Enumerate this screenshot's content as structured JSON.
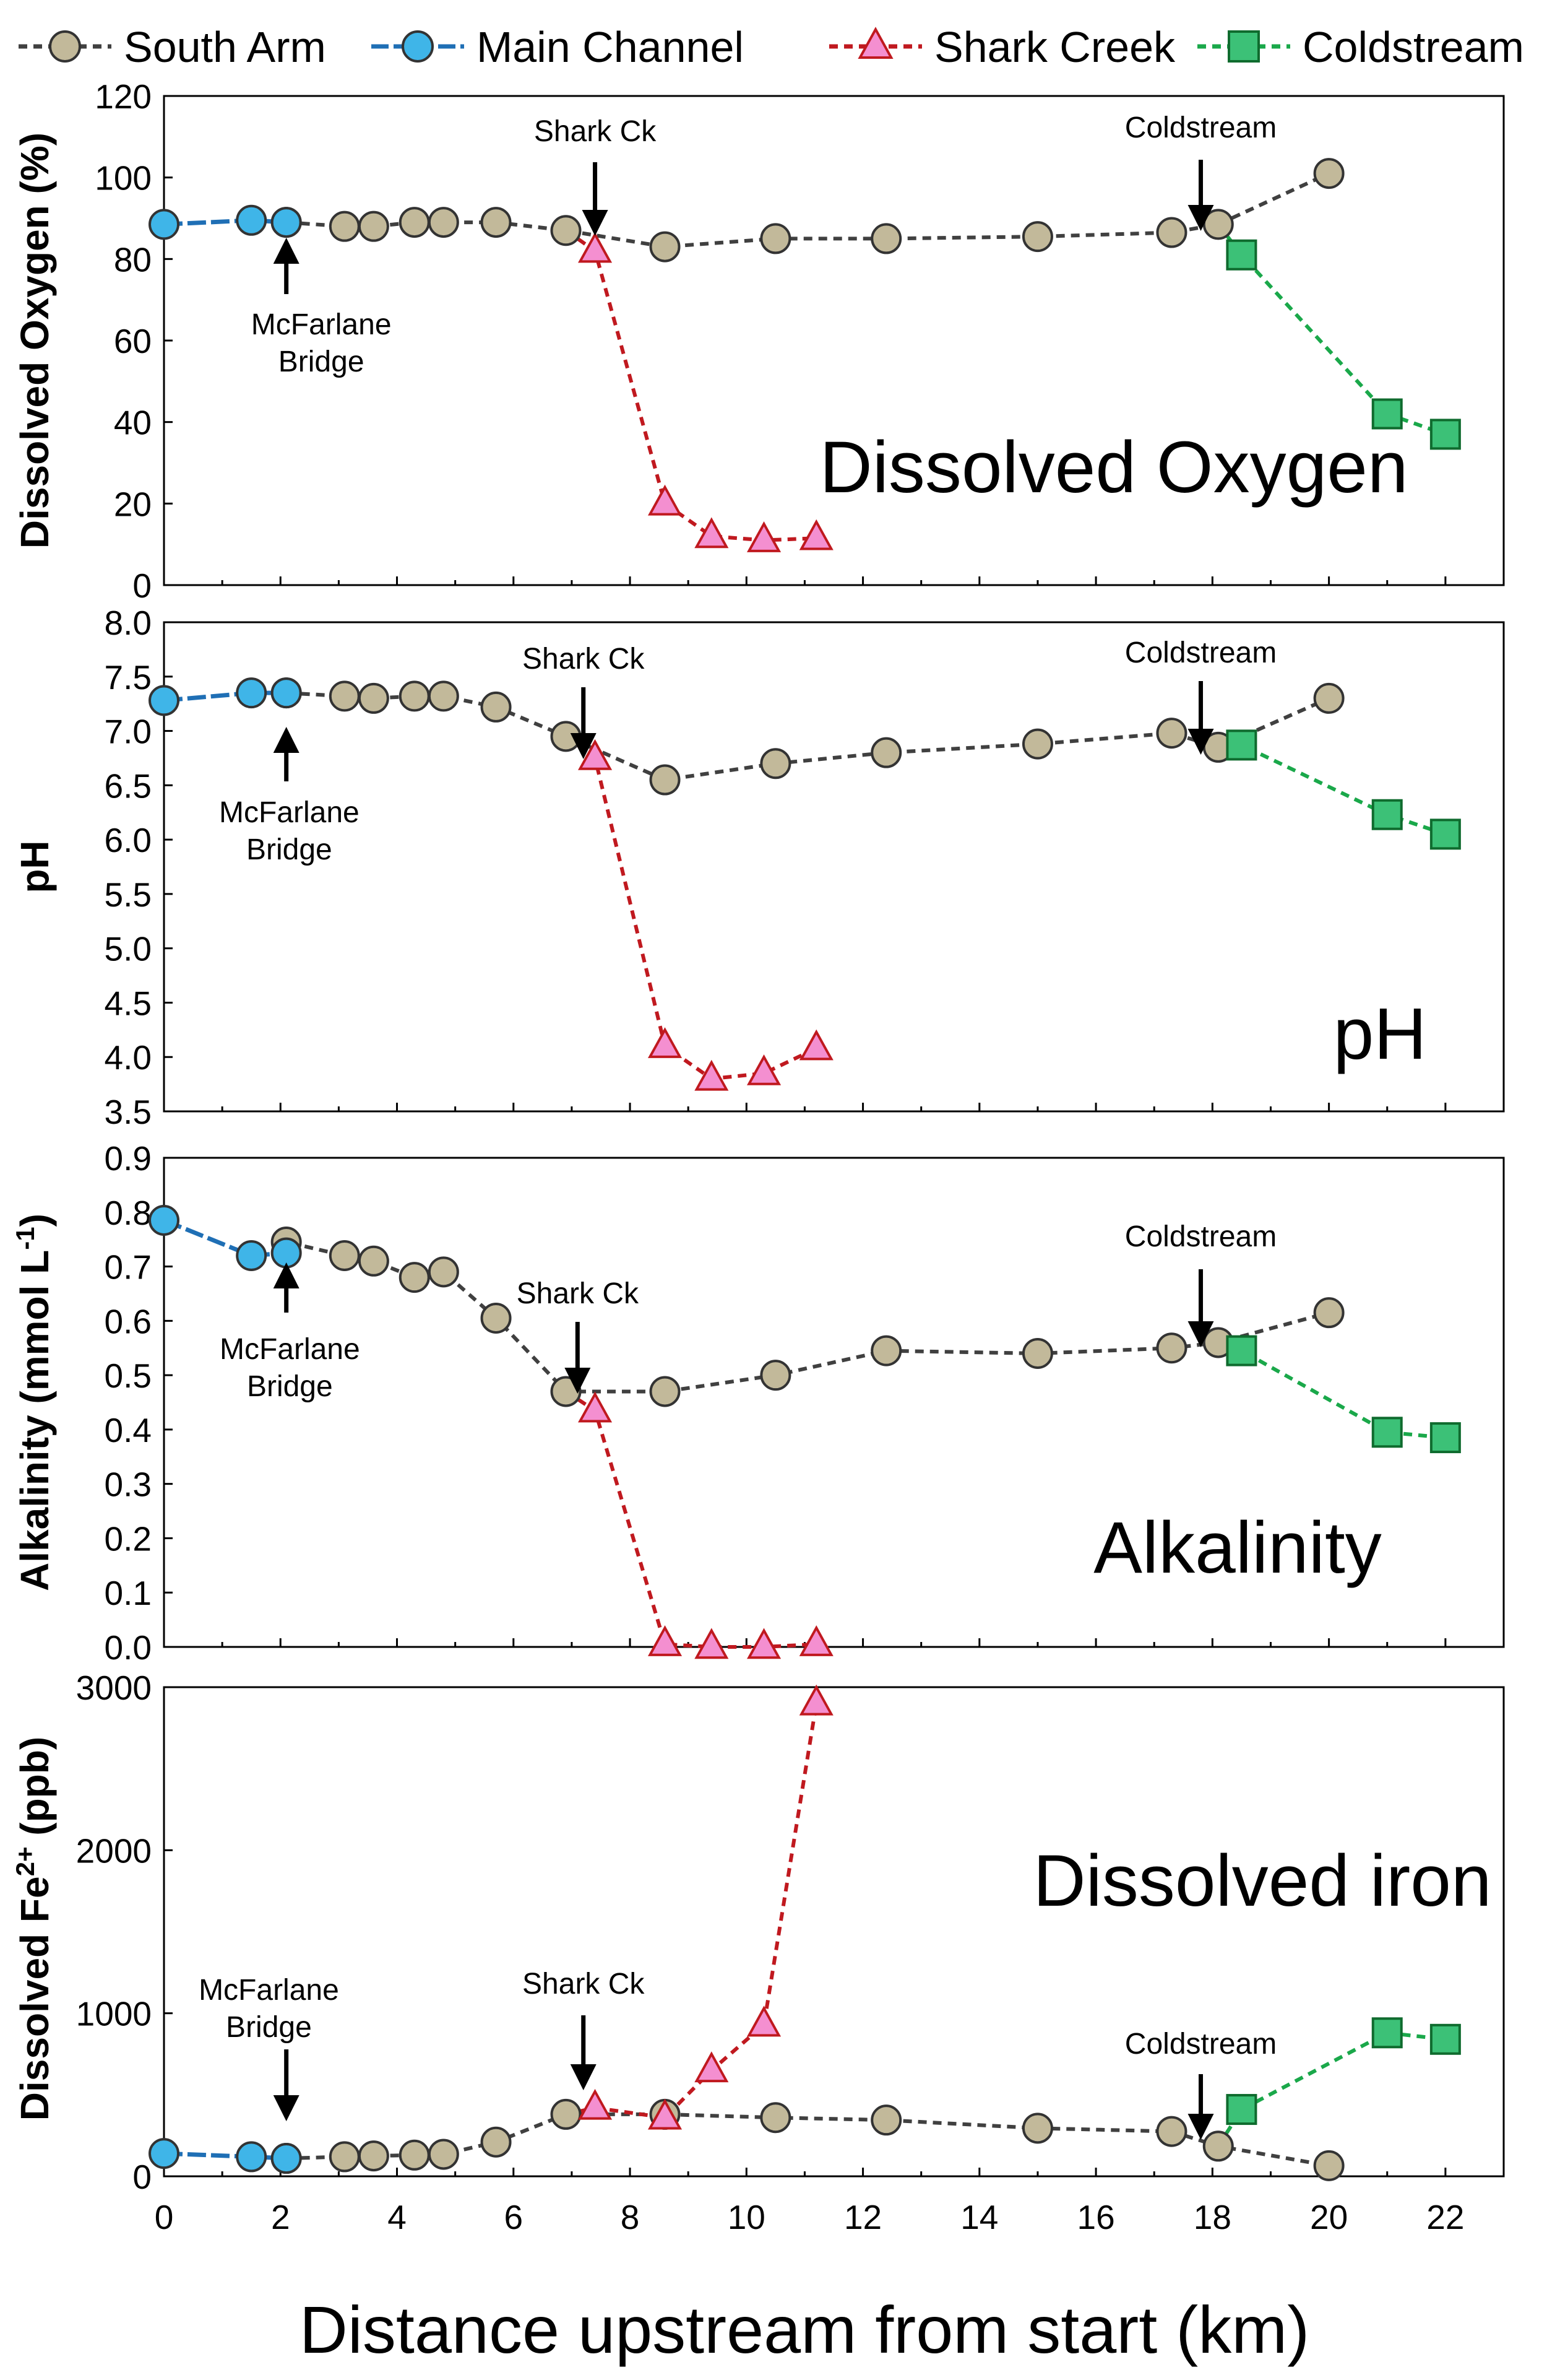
{
  "colors": {
    "south_arm": "#c2b99a",
    "south_arm_line": "#404040",
    "main_channel": "#3fb5e8",
    "main_channel_line": "#1f6fb5",
    "shark_creek": "#f48fd0",
    "shark_creek_line": "#c0191f",
    "coldstream": "#3cc177",
    "coldstream_line": "#1aa84a"
  },
  "legend": [
    {
      "key": "south_arm",
      "label": "South Arm",
      "marker": "circle"
    },
    {
      "key": "main_channel",
      "label": "Main Channel",
      "marker": "circle"
    },
    {
      "key": "shark_creek",
      "label": "Shark Creek",
      "marker": "triangle"
    },
    {
      "key": "coldstream",
      "label": "Coldstream",
      "marker": "square"
    }
  ],
  "x_axis": {
    "label": "Distance upstream from start (km)",
    "range": [
      0,
      23
    ],
    "ticks": [
      0,
      2,
      4,
      6,
      8,
      10,
      12,
      14,
      16,
      18,
      20,
      22
    ]
  },
  "chart_data": [
    {
      "type": "line",
      "id": "do",
      "title": "Dissolved Oxygen",
      "ylabel": "Dissolved Oxygen (%)",
      "ylim": [
        0,
        120
      ],
      "yticks": [
        "0",
        "20",
        "40",
        "60",
        "80",
        "100",
        "120"
      ],
      "series": [
        {
          "key": "south_arm",
          "name": "South Arm",
          "x": [
            2.1,
            3.1,
            3.6,
            4.3,
            4.8,
            5.7,
            6.9,
            8.6,
            10.5,
            12.4,
            15,
            17.3,
            18.1,
            20
          ],
          "y": [
            89,
            88,
            88,
            89,
            89,
            89,
            87,
            83,
            85,
            85,
            85.5,
            86.5,
            88.5,
            101
          ]
        },
        {
          "key": "main_channel",
          "name": "Main Channel",
          "x": [
            0,
            1.5,
            2.1
          ],
          "y": [
            88.5,
            89.5,
            89
          ]
        },
        {
          "key": "shark_creek",
          "name": "Shark Creek",
          "x": [
            7.4,
            8.6,
            9.4,
            10.3,
            11.2
          ],
          "y": [
            82,
            20,
            12,
            11,
            11.5
          ]
        },
        {
          "key": "coldstream",
          "name": "Coldstream",
          "x": [
            18.5,
            21,
            22
          ],
          "y": [
            81,
            42,
            37
          ]
        }
      ],
      "annotations": [
        {
          "text": "Shark Ck",
          "x": 7.4
        },
        {
          "text": "Coldstream",
          "x": 17.8
        },
        {
          "text": "McFarlane",
          "line2": "Bridge",
          "x": 2.1
        }
      ]
    },
    {
      "type": "line",
      "id": "ph",
      "title": "pH",
      "ylabel": "pH",
      "ylim": [
        3.5,
        8.0
      ],
      "yticks": [
        "3.5",
        "4.0",
        "4.5",
        "5.0",
        "5.5",
        "6.0",
        "6.5",
        "7.0",
        "7.5",
        "8.0"
      ],
      "series": [
        {
          "key": "south_arm",
          "name": "South Arm",
          "x": [
            2.1,
            3.1,
            3.6,
            4.3,
            4.8,
            5.7,
            6.9,
            8.6,
            10.5,
            12.4,
            15,
            17.3,
            18.1,
            20
          ],
          "y": [
            7.35,
            7.32,
            7.3,
            7.32,
            7.32,
            7.22,
            6.95,
            6.55,
            6.7,
            6.8,
            6.88,
            6.98,
            6.85,
            7.3
          ]
        },
        {
          "key": "main_channel",
          "name": "Main Channel",
          "x": [
            0,
            1.5,
            2.1
          ],
          "y": [
            7.28,
            7.35,
            7.35
          ]
        },
        {
          "key": "shark_creek",
          "name": "Shark Creek",
          "x": [
            7.4,
            8.6,
            9.4,
            10.3,
            11.2
          ],
          "y": [
            6.75,
            4.1,
            3.8,
            3.85,
            4.08
          ]
        },
        {
          "key": "coldstream",
          "name": "Coldstream",
          "x": [
            18.5,
            21,
            22
          ],
          "y": [
            6.87,
            6.23,
            6.05
          ]
        }
      ],
      "annotations": [
        {
          "text": "Shark Ck",
          "x": 7.2
        },
        {
          "text": "Coldstream",
          "x": 17.8
        },
        {
          "text": "McFarlane",
          "line2": "Bridge",
          "x": 2.1
        }
      ]
    },
    {
      "type": "line",
      "id": "alk",
      "title": "Alkalinity",
      "ylabel": "Alkalinity (mmol L-1)",
      "ylim": [
        0,
        0.9
      ],
      "yticks": [
        "0.0",
        "0.1",
        "0.2",
        "0.3",
        "0.4",
        "0.5",
        "0.6",
        "0.7",
        "0.8",
        "0.9"
      ],
      "series": [
        {
          "key": "south_arm",
          "name": "South Arm",
          "x": [
            2.1,
            3.1,
            3.6,
            4.3,
            4.8,
            5.7,
            6.9,
            8.6,
            10.5,
            12.4,
            15,
            17.3,
            18.1,
            20
          ],
          "y": [
            0.745,
            0.72,
            0.71,
            0.68,
            0.69,
            0.605,
            0.47,
            0.47,
            0.5,
            0.545,
            0.54,
            0.55,
            0.56,
            0.615
          ]
        },
        {
          "key": "main_channel",
          "name": "Main Channel",
          "x": [
            0,
            1.5,
            2.1
          ],
          "y": [
            0.785,
            0.72,
            0.725
          ]
        },
        {
          "key": "shark_creek",
          "name": "Shark Creek",
          "x": [
            7.4,
            8.6,
            9.4,
            10.3,
            11.2
          ],
          "y": [
            0.435,
            0.005,
            0.0,
            0.0,
            0.005
          ]
        },
        {
          "key": "coldstream",
          "name": "Coldstream",
          "x": [
            18.5,
            21,
            22
          ],
          "y": [
            0.545,
            0.395,
            0.385
          ]
        }
      ],
      "annotations": [
        {
          "text": "Shark Ck",
          "x": 7.1
        },
        {
          "text": "Coldstream",
          "x": 17.8
        },
        {
          "text": "McFarlane",
          "line2": "Bridge",
          "x": 2.1
        }
      ]
    },
    {
      "type": "line",
      "id": "fe",
      "title": "Dissolved iron",
      "ylabel": "Dissolved Fe2+ (ppb)",
      "ylim": [
        0,
        3000
      ],
      "yticks": [
        "0",
        "1000",
        "2000",
        "3000"
      ],
      "series": [
        {
          "key": "south_arm",
          "name": "South Arm",
          "x": [
            2.1,
            3.1,
            3.6,
            4.3,
            4.8,
            5.7,
            6.9,
            8.6,
            10.5,
            12.4,
            15,
            17.3,
            18.1,
            20
          ],
          "y": [
            110,
            120,
            125,
            130,
            135,
            210,
            380,
            380,
            360,
            345,
            295,
            275,
            185,
            65
          ]
        },
        {
          "key": "main_channel",
          "name": "Main Channel",
          "x": [
            0,
            1.5,
            2.1
          ],
          "y": [
            140,
            120,
            110
          ]
        },
        {
          "key": "shark_creek",
          "name": "Shark Creek",
          "x": [
            7.4,
            8.6,
            9.4,
            10.3,
            11.2
          ],
          "y": [
            420,
            360,
            650,
            930,
            2900
          ]
        },
        {
          "key": "coldstream",
          "name": "Coldstream",
          "x": [
            18.5,
            21,
            22
          ],
          "y": [
            410,
            880,
            840
          ]
        }
      ],
      "annotations": [
        {
          "text": "Shark Ck",
          "x": 7.2
        },
        {
          "text": "Coldstream",
          "x": 17.8
        },
        {
          "text": "McFarlane",
          "line2": "Bridge",
          "x": 2.1
        }
      ]
    }
  ]
}
